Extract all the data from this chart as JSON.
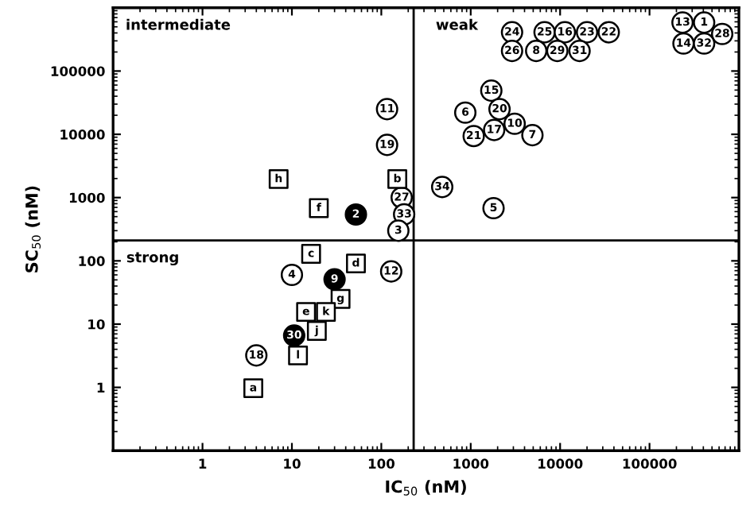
{
  "chart_data": {
    "type": "scatter",
    "xlabel": "IC$_{50}$ (nM)",
    "ylabel": "SC$_{50}$ (nM)",
    "log": "xy",
    "xlim": [
      0.1,
      1000000
    ],
    "ylim": [
      0.1,
      1000000
    ],
    "xticks": [
      1,
      10,
      100,
      1000,
      10000,
      100000
    ],
    "yticks": [
      1,
      10,
      100,
      1000,
      10000,
      100000
    ],
    "grid": false,
    "ref_lines": [
      {
        "axis": "y",
        "value": 210,
        "color": "#000000"
      },
      {
        "axis": "x",
        "value": 230,
        "color": "#000000"
      }
    ],
    "series": [
      {
        "marker": "circle",
        "color": "#ffffff",
        "x": [
          116,
          116,
          169,
          180,
          155,
          480,
          1800,
          870,
          1700,
          2100,
          1830,
          1080,
          3100,
          4900,
          2900,
          2900,
          6700,
          5400,
          11300,
          9300,
          20000,
          16500,
          35000,
          234000,
          408000,
          650000,
          240000,
          408000,
          129,
          10,
          4.0
        ],
        "values": [
          25000,
          6800,
          1000,
          543,
          300,
          1470,
          680,
          22000,
          49000,
          25000,
          11700,
          9400,
          14700,
          9700,
          410000,
          208000,
          410000,
          208000,
          410000,
          208000,
          410000,
          208000,
          410000,
          585000,
          585000,
          385000,
          272000,
          272000,
          68,
          60,
          3.2
        ]
      },
      {
        "marker": "circle",
        "color": "#000000",
        "x": [
          52,
          30,
          10.6
        ],
        "values": [
          540,
          51,
          6.6
        ]
      },
      {
        "marker": "square",
        "color": "#ffffff",
        "x": [
          7.1,
          20,
          151,
          16.4,
          52,
          35,
          14.4,
          24,
          19,
          11.7,
          3.7
        ],
        "values": [
          1960,
          680,
          1960,
          129,
          91,
          25,
          15.6,
          15.6,
          7.8,
          3.2,
          0.97
        ]
      }
    ],
    "annotations": [
      "intermediate",
      "weak",
      "strong",
      {
        "text": "11",
        "x": 116,
        "y": 25000
      },
      {
        "text": "19",
        "x": 116,
        "y": 6800
      },
      {
        "text": "27",
        "x": 169,
        "y": 1000
      },
      {
        "text": "33",
        "x": 180,
        "y": 543
      },
      {
        "text": "3",
        "x": 155,
        "y": 300
      },
      {
        "text": "34",
        "x": 480,
        "y": 1470
      },
      {
        "text": "5",
        "x": 1800,
        "y": 680
      },
      {
        "text": "6",
        "x": 870,
        "y": 22000
      },
      {
        "text": "15",
        "x": 1700,
        "y": 49000
      },
      {
        "text": "20",
        "x": 2100,
        "y": 25000
      },
      {
        "text": "17",
        "x": 1830,
        "y": 11700
      },
      {
        "text": "21",
        "x": 1080,
        "y": 9400
      },
      {
        "text": "10",
        "x": 3100,
        "y": 14700
      },
      {
        "text": "7",
        "x": 4900,
        "y": 9700
      },
      {
        "text": "24",
        "x": 2900,
        "y": 410000
      },
      {
        "text": "26",
        "x": 2900,
        "y": 208000
      },
      {
        "text": "25",
        "x": 6700,
        "y": 410000
      },
      {
        "text": "8",
        "x": 5400,
        "y": 208000
      },
      {
        "text": "16",
        "x": 11300,
        "y": 410000
      },
      {
        "text": "29",
        "x": 9300,
        "y": 208000
      },
      {
        "text": "23",
        "x": 20000,
        "y": 410000
      },
      {
        "text": "31",
        "x": 16500,
        "y": 208000
      },
      {
        "text": "22",
        "x": 35000,
        "y": 410000
      },
      {
        "text": "13",
        "x": 234000,
        "y": 585000
      },
      {
        "text": "1",
        "x": 408000,
        "y": 585000
      },
      {
        "text": "28",
        "x": 650000,
        "y": 385000
      },
      {
        "text": "14",
        "x": 240000,
        "y": 272000
      },
      {
        "text": "32",
        "x": 408000,
        "y": 272000
      },
      {
        "text": "12",
        "x": 129,
        "y": 68
      },
      {
        "text": "4",
        "x": 10,
        "y": 60
      },
      {
        "text": "18",
        "x": 4.0,
        "y": 3.2
      },
      {
        "text": "2",
        "x": 52,
        "y": 540
      },
      {
        "text": "9",
        "x": 30,
        "y": 51
      },
      {
        "text": "30",
        "x": 10.6,
        "y": 6.6
      },
      {
        "text": "h",
        "x": 7.1,
        "y": 1960
      },
      {
        "text": "f",
        "x": 20,
        "y": 680
      },
      {
        "text": "b",
        "x": 151,
        "y": 1960
      },
      {
        "text": "c",
        "x": 16.4,
        "y": 129
      },
      {
        "text": "d",
        "x": 52,
        "y": 91
      },
      {
        "text": "g",
        "x": 35,
        "y": 25
      },
      {
        "text": "e",
        "x": 14.4,
        "y": 15.6
      },
      {
        "text": "k",
        "x": 24,
        "y": 15.6
      },
      {
        "text": "j",
        "x": 19,
        "y": 7.8
      },
      {
        "text": "l",
        "x": 11.7,
        "y": 3.2
      },
      {
        "text": "a",
        "x": 3.7,
        "y": 0.97
      }
    ]
  }
}
